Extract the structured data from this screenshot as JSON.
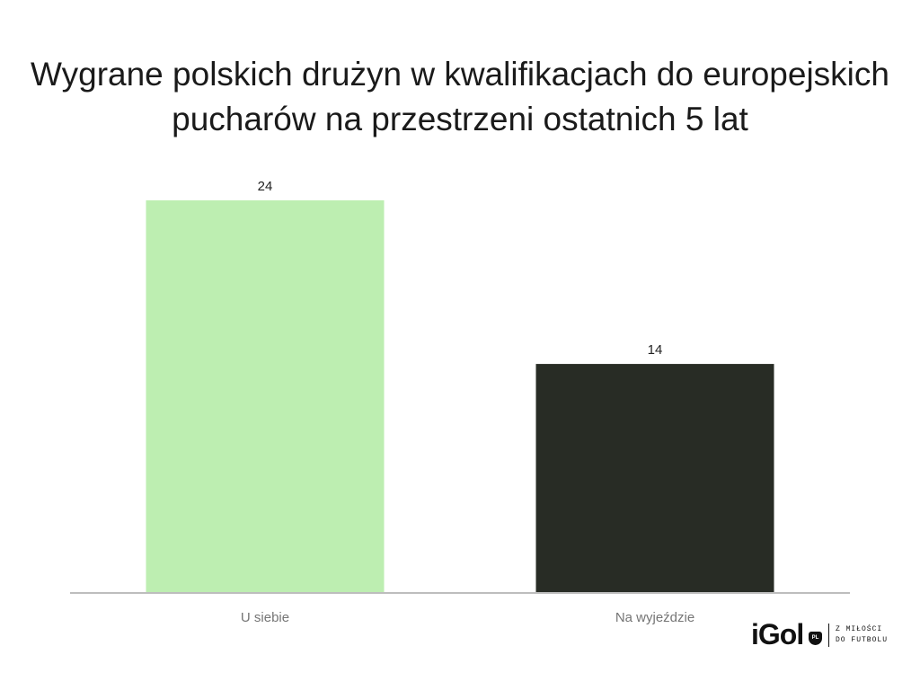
{
  "chart_data": {
    "type": "bar",
    "title": "Wygrane polskich drużyn w kwalifikacjach do europejskich pucharów na przestrzeni ostatnich 5 lat",
    "categories": [
      "U siebie",
      "Na wyjeździe"
    ],
    "values": [
      24,
      14
    ],
    "colors": [
      "#bdeeb1",
      "#282c25"
    ],
    "ylim": [
      0,
      24
    ],
    "grid": false,
    "legend": "none",
    "data_labels": true
  },
  "logo": {
    "brand": "iGol",
    "badge": "PL",
    "tagline_line1": "Z MIŁOŚCI",
    "tagline_line2": "DO FUTBOLU"
  }
}
